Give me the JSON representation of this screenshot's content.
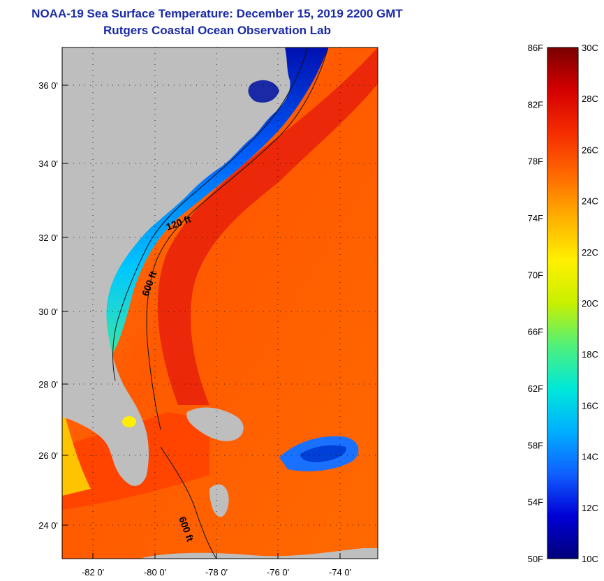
{
  "map": {
    "title_line1": "NOAA-19 Sea Surface Temperature:  December 15, 2019 2200 GMT",
    "title_line2": "Rutgers Coastal Ocean Observation Lab",
    "lat_labels": [
      "36 0'",
      "34 0'",
      "32 0'",
      "30 0'",
      "28 0'",
      "26 0'",
      "24 0'"
    ],
    "lon_labels": [
      "-82 0'",
      "-80 0'",
      "-78 0'",
      "-76 0'",
      "-74 0'"
    ],
    "contour_labels": [
      "120 ft",
      "600 ft",
      "600 ft"
    ],
    "land_color": "#bebebe"
  },
  "colorbar": {
    "f_labels": [
      "86F",
      "82F",
      "78F",
      "74F",
      "70F",
      "66F",
      "62F",
      "58F",
      "54F",
      "50F"
    ],
    "c_labels": [
      "30C",
      "28C",
      "26C",
      "24C",
      "22C",
      "20C",
      "18C",
      "16C",
      "14C",
      "12C",
      "10C"
    ],
    "range_c": [
      10,
      30
    ],
    "colors": [
      "#00007a",
      "#0000d6",
      "#1060ff",
      "#00b0ff",
      "#00e8d8",
      "#50f07a",
      "#c8f000",
      "#fff000",
      "#ffb000",
      "#ff6a00",
      "#f52c00",
      "#d40000",
      "#7a0000"
    ]
  }
}
